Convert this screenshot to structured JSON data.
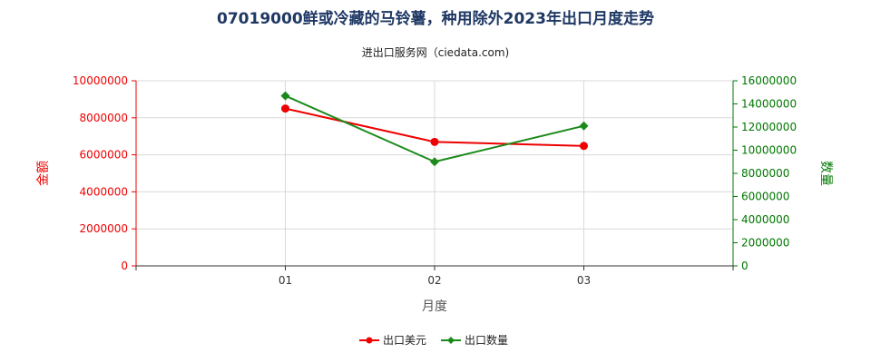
{
  "chart_data": {
    "type": "line",
    "title": "07019000鲜或冷藏的马铃薯，种用除外2023年出口月度走势",
    "subtitle": "进出口服务网（ciedata.com)",
    "xlabel": "月度",
    "ylabel_left": "金额",
    "ylabel_right": "数量",
    "categories": [
      "01",
      "02",
      "03"
    ],
    "y_left": {
      "min": 0,
      "max": 10000000,
      "step": 2000000,
      "color": "#ee0000"
    },
    "y_right": {
      "min": 0,
      "max": 16000000,
      "step": 2000000,
      "color": "#007700"
    },
    "series": [
      {
        "name": "出口美元",
        "axis": "left",
        "color": "#ee0000",
        "marker": "circle",
        "values": [
          8500000,
          6700000,
          6480000
        ]
      },
      {
        "name": "出口数量",
        "axis": "right",
        "color": "#1a8a1a",
        "marker": "diamond",
        "values": [
          14700000,
          9000000,
          12100000
        ]
      }
    ],
    "grid": true,
    "legend": "bottom-center"
  }
}
